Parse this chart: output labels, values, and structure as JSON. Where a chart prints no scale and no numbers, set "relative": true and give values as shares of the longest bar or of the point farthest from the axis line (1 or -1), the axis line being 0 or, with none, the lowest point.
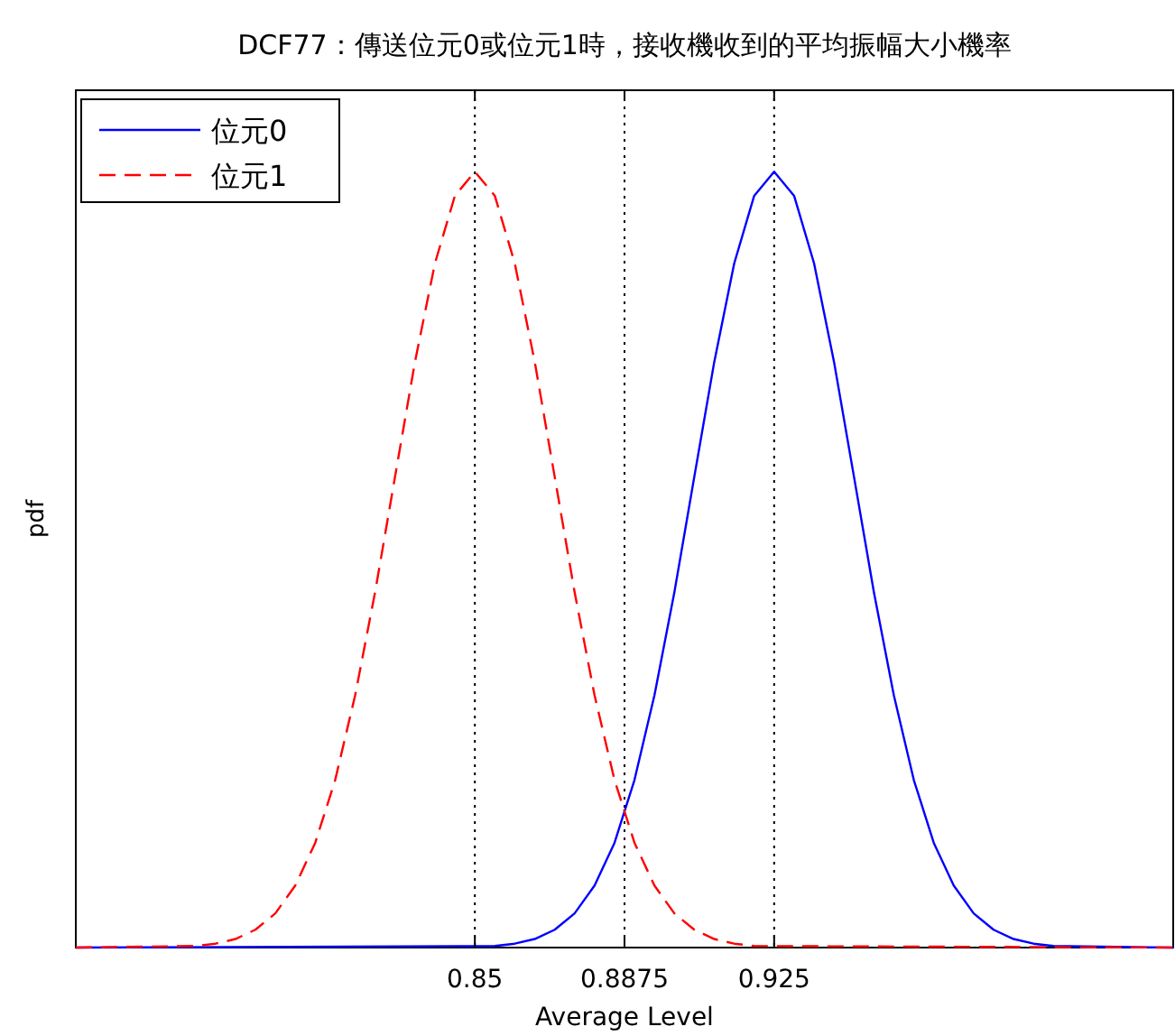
{
  "chart_data": {
    "type": "line",
    "title": "DCF77：傳送位元0或位元1時，接收機收到的平均振幅大小機率",
    "xlabel": "Average Level",
    "ylabel": "pdf",
    "relative": true,
    "xlim": [
      0.75,
      1.025
    ],
    "xticks": [
      0.85,
      0.8875,
      0.925
    ],
    "legend": "top left",
    "grid": false,
    "ref_lines": [
      {
        "axis": "x",
        "value": 0.85,
        "color": "#000000",
        "line_style": "dotted"
      },
      {
        "axis": "x",
        "value": 0.8875,
        "color": "#000000",
        "line_style": "dotted"
      },
      {
        "axis": "x",
        "value": 0.925,
        "color": "#000000",
        "line_style": "dotted"
      }
    ],
    "series": [
      {
        "name": "位元0",
        "color": "#0000ff",
        "line_style": "solid",
        "x": [
          0.75,
          0.855,
          0.86,
          0.865,
          0.87,
          0.875,
          0.88,
          0.885,
          0.89,
          0.895,
          0.9,
          0.905,
          0.91,
          0.915,
          0.92,
          0.925,
          0.93,
          0.935,
          0.94,
          0.945,
          0.95,
          0.955,
          0.96,
          0.965,
          0.97,
          0.975,
          0.98,
          0.985,
          0.99,
          0.995,
          1.025
        ],
        "values": [
          0,
          0.002,
          0.005,
          0.011,
          0.023,
          0.044,
          0.08,
          0.135,
          0.216,
          0.325,
          0.458,
          0.607,
          0.755,
          0.882,
          0.969,
          1,
          0.969,
          0.882,
          0.755,
          0.607,
          0.458,
          0.325,
          0.216,
          0.135,
          0.08,
          0.044,
          0.023,
          0.011,
          0.005,
          0.002,
          0
        ]
      },
      {
        "name": "位元1",
        "color": "#ff0000",
        "line_style": "dashed",
        "x": [
          0.75,
          0.78,
          0.785,
          0.79,
          0.795,
          0.8,
          0.805,
          0.81,
          0.815,
          0.82,
          0.825,
          0.83,
          0.835,
          0.84,
          0.845,
          0.85,
          0.855,
          0.86,
          0.865,
          0.87,
          0.875,
          0.88,
          0.885,
          0.89,
          0.895,
          0.9,
          0.905,
          0.91,
          0.915,
          0.92,
          1.025
        ],
        "values": [
          0,
          0.002,
          0.005,
          0.011,
          0.023,
          0.044,
          0.08,
          0.135,
          0.216,
          0.325,
          0.458,
          0.607,
          0.755,
          0.882,
          0.969,
          1,
          0.969,
          0.882,
          0.755,
          0.607,
          0.458,
          0.325,
          0.216,
          0.135,
          0.08,
          0.044,
          0.023,
          0.011,
          0.005,
          0.002,
          0
        ]
      }
    ]
  }
}
